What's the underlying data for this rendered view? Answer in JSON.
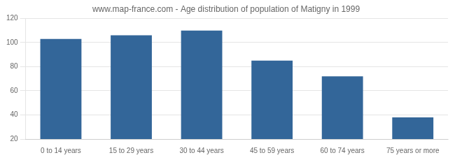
{
  "chart_data": {
    "type": "bar",
    "title": "www.map-france.com - Age distribution of population of Matigny in 1999",
    "categories": [
      "0 to 14 years",
      "15 to 29 years",
      "30 to 44 years",
      "45 to 59 years",
      "60 to 74 years",
      "75 years or more"
    ],
    "values": [
      103,
      106,
      110,
      85,
      72,
      38
    ],
    "color": "#336699",
    "ylim": [
      20,
      120
    ],
    "yticks": [
      20,
      40,
      60,
      80,
      100,
      120
    ],
    "grid": true
  }
}
